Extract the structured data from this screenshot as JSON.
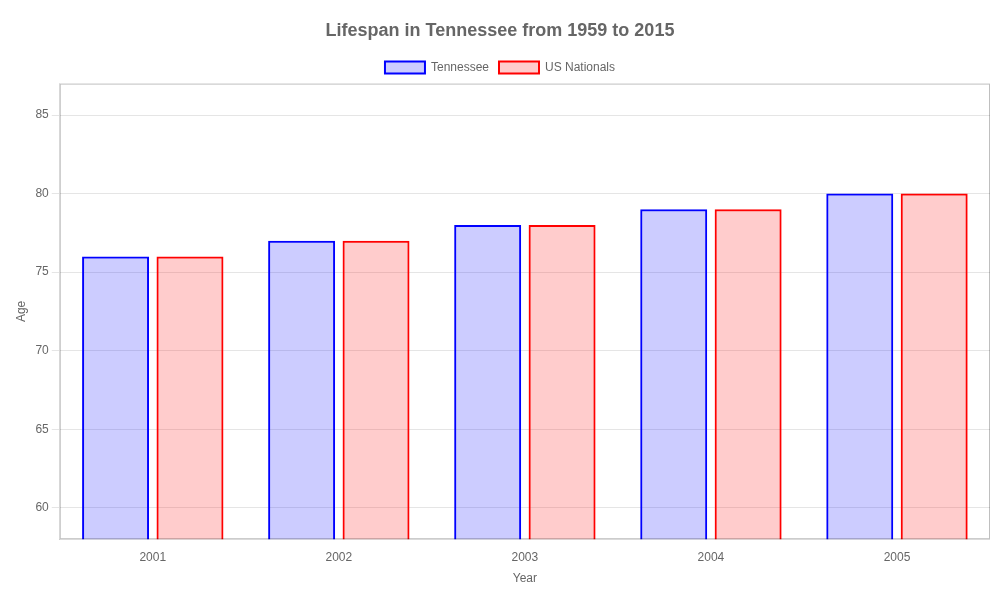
{
  "chart_data": {
    "type": "bar",
    "title": "Lifespan in Tennessee from 1959 to 2015",
    "x_label": "Year",
    "y_label": "Age",
    "categories": [
      "2001",
      "2002",
      "2003",
      "2004",
      "2005"
    ],
    "series": [
      {
        "name": "Tennessee",
        "color": "#0000ff",
        "values": [
          76,
          77,
          78,
          79,
          80
        ]
      },
      {
        "name": "US Nationals",
        "color": "#ff0000",
        "values": [
          76,
          77,
          78,
          79,
          80
        ]
      }
    ],
    "ylim": [
      58,
      87
    ],
    "yticks": [
      60,
      65,
      70,
      75,
      80,
      85
    ],
    "grid": true,
    "legend": "top"
  }
}
